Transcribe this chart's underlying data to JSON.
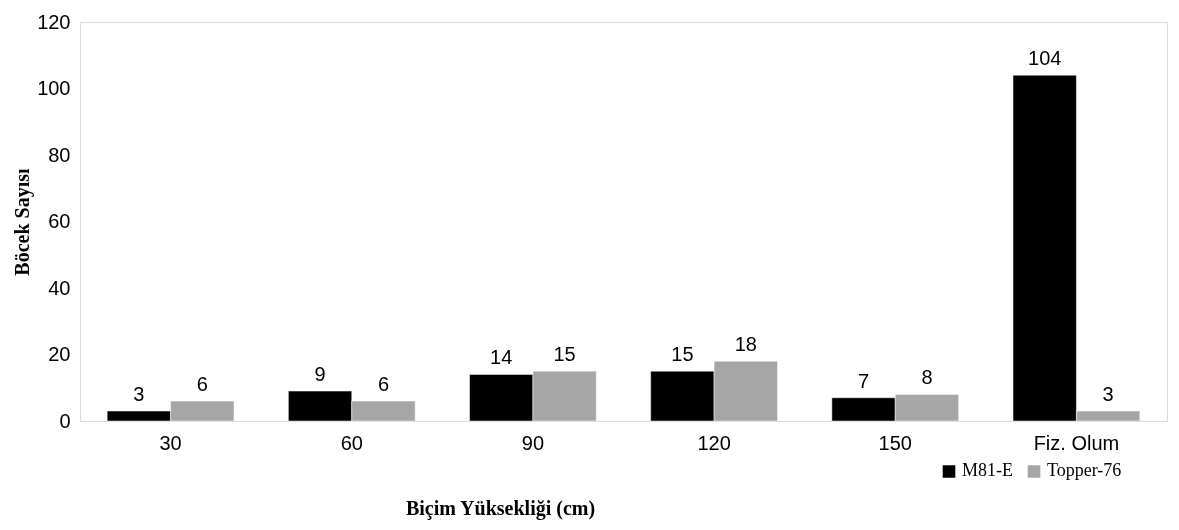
{
  "chart_data": {
    "type": "bar",
    "xlabel": "Biçim Yüksekliği (cm)",
    "ylabel": "Böcek Sayısı",
    "categories": [
      "30",
      "60",
      "90",
      "120",
      "150",
      "Fiz. Olum"
    ],
    "series": [
      {
        "name": "M81-E",
        "color": "#000000",
        "values": [
          3,
          9,
          14,
          15,
          7,
          104
        ]
      },
      {
        "name": "Topper-76",
        "color": "#a6a6a6",
        "values": [
          6,
          6,
          15,
          18,
          8,
          3
        ]
      }
    ],
    "ylim": [
      0,
      120
    ],
    "yticks": [
      0,
      20,
      40,
      60,
      80,
      100,
      120
    ],
    "grid": false,
    "legend": "bottom right",
    "data_labels": true
  }
}
